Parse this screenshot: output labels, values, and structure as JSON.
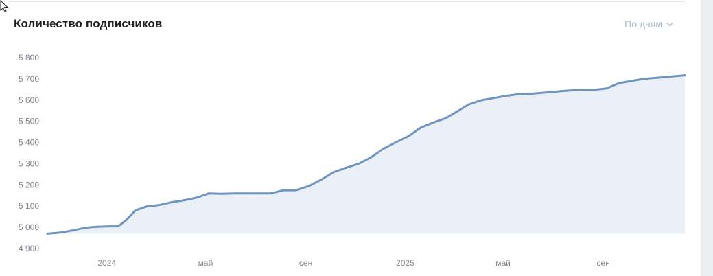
{
  "header": {
    "title": "Количество подписчиков",
    "period_label": "По дням"
  },
  "colors": {
    "line": "#6f94bf",
    "area": "#ebf0f8",
    "axis_text": "#7f8691",
    "period_text": "#aab8cb"
  },
  "chart_data": {
    "type": "area",
    "title": "Количество подписчиков",
    "xlabel": "",
    "ylabel": "",
    "ylim": [
      4900,
      5800
    ],
    "yticks": [
      "5 800",
      "5 700",
      "5 600",
      "5 500",
      "5 400",
      "5 300",
      "5 200",
      "5 100",
      "5 000",
      "4 900"
    ],
    "ytick_values": [
      5800,
      5700,
      5600,
      5500,
      5400,
      5300,
      5200,
      5100,
      5000,
      4900
    ],
    "x_range": [
      "2023-10-20",
      "2025-12-10"
    ],
    "xticks": [
      {
        "label": "2024",
        "date": "2024-01-01"
      },
      {
        "label": "май",
        "date": "2024-05-01"
      },
      {
        "label": "сен",
        "date": "2024-09-01"
      },
      {
        "label": "2025",
        "date": "2025-01-01"
      },
      {
        "label": "май",
        "date": "2025-05-01"
      },
      {
        "label": "сен",
        "date": "2025-09-01"
      }
    ],
    "grid": false,
    "legend": "none",
    "series": [
      {
        "x": [
          "2023-10-20",
          "2023-11-05",
          "2023-11-20",
          "2023-12-05",
          "2023-12-20",
          "2024-01-05",
          "2024-01-15",
          "2024-01-25",
          "2024-02-05",
          "2024-02-20",
          "2024-03-05",
          "2024-03-20",
          "2024-04-05",
          "2024-04-20",
          "2024-05-05",
          "2024-05-20",
          "2024-06-05",
          "2024-06-20",
          "2024-07-05",
          "2024-07-20",
          "2024-08-05",
          "2024-08-20",
          "2024-09-05",
          "2024-09-20",
          "2024-10-05",
          "2024-10-20",
          "2024-11-05",
          "2024-11-20",
          "2024-12-05",
          "2024-12-20",
          "2025-01-05",
          "2025-01-20",
          "2025-02-05",
          "2025-02-20",
          "2025-03-05",
          "2025-03-20",
          "2025-04-05",
          "2025-04-20",
          "2025-05-05",
          "2025-05-20",
          "2025-06-05",
          "2025-06-20",
          "2025-07-05",
          "2025-07-20",
          "2025-08-05",
          "2025-08-20",
          "2025-09-05",
          "2025-09-20",
          "2025-10-05",
          "2025-10-20",
          "2025-11-05",
          "2025-11-20",
          "2025-12-10"
        ],
        "values": [
          4970,
          4975,
          4985,
          4998,
          5003,
          5005,
          5005,
          5035,
          5080,
          5100,
          5105,
          5118,
          5128,
          5140,
          5160,
          5158,
          5160,
          5160,
          5160,
          5160,
          5175,
          5175,
          5195,
          5225,
          5260,
          5280,
          5300,
          5330,
          5370,
          5400,
          5430,
          5470,
          5495,
          5515,
          5545,
          5580,
          5600,
          5610,
          5620,
          5628,
          5630,
          5635,
          5640,
          5645,
          5648,
          5648,
          5655,
          5680,
          5690,
          5700,
          5705,
          5710,
          5717
        ]
      }
    ]
  }
}
